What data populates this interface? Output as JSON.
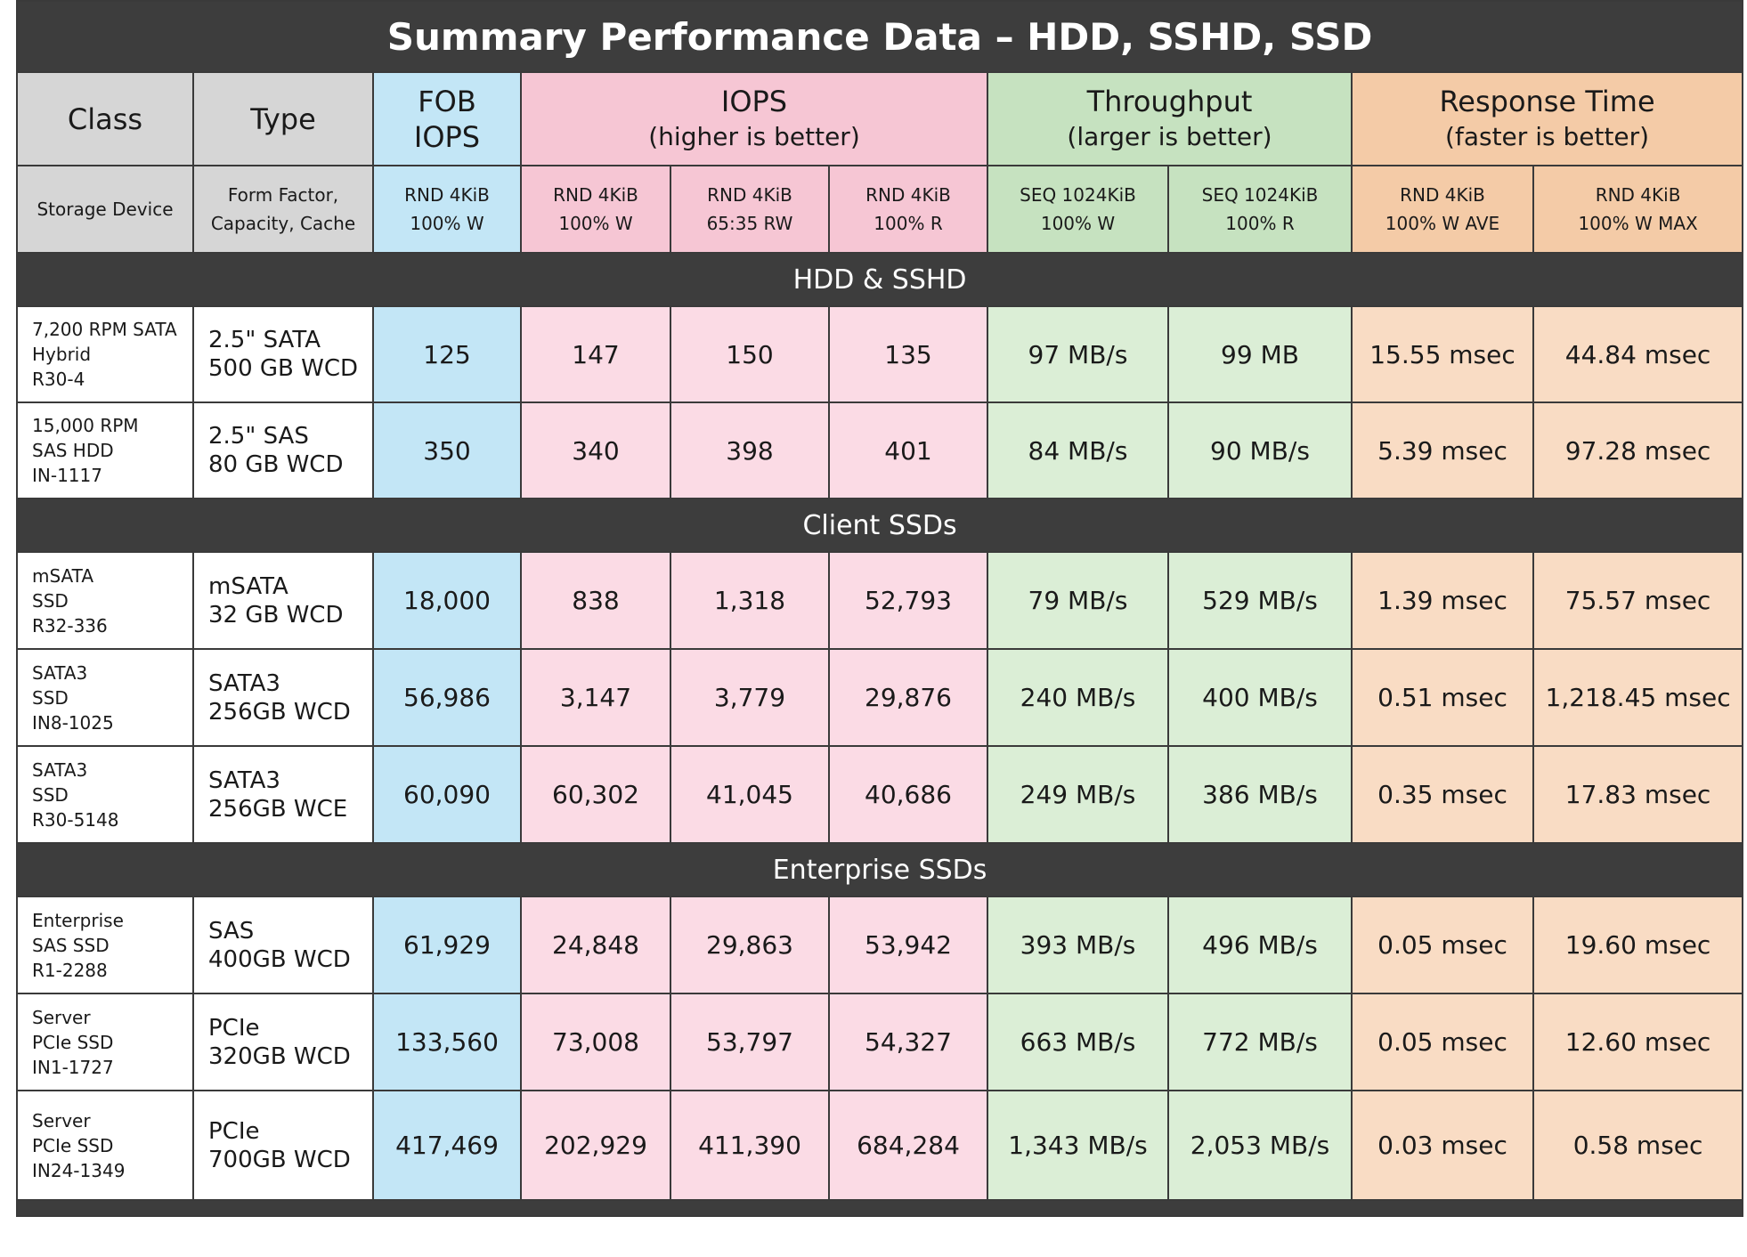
{
  "title": "Summary Performance Data – HDD, SSHD, SSD",
  "header_top": {
    "class": "Class",
    "type": "Type",
    "fob": [
      "FOB",
      "IOPS"
    ],
    "iops": [
      "IOPS",
      "(higher is better)"
    ],
    "throughput": [
      "Throughput",
      "(larger is better)"
    ],
    "response": [
      "Response Time",
      "(faster is better)"
    ]
  },
  "header_sub": {
    "class": "Storage Device",
    "type": [
      "Form Factor,",
      "Capacity, Cache"
    ],
    "cols": [
      [
        "RND 4KiB",
        "100% W"
      ],
      [
        "RND 4KiB",
        "100% W"
      ],
      [
        "RND 4KiB",
        "65:35 RW"
      ],
      [
        "RND 4KiB",
        "100% R"
      ],
      [
        "SEQ 1024KiB",
        "100% W"
      ],
      [
        "SEQ 1024KiB",
        "100% R"
      ],
      [
        "RND 4KiB",
        "100% W AVE"
      ],
      [
        "RND 4KiB",
        "100% W MAX"
      ]
    ]
  },
  "sections": [
    {
      "name": "HDD & SSHD",
      "rows": [
        {
          "class": [
            "7,200 RPM SATA",
            "Hybrid",
            "R30-4"
          ],
          "type": [
            "2.5\" SATA",
            "500 GB WCD"
          ],
          "values": [
            "125",
            "147",
            "150",
            "135",
            "97 MB/s",
            "99 MB",
            "15.55 msec",
            "44.84 msec"
          ]
        },
        {
          "class": [
            "15,000 RPM",
            "SAS HDD",
            "IN-1117"
          ],
          "type": [
            "2.5\" SAS",
            "80 GB WCD"
          ],
          "values": [
            "350",
            "340",
            "398",
            "401",
            "84 MB/s",
            "90 MB/s",
            "5.39 msec",
            "97.28 msec"
          ]
        }
      ]
    },
    {
      "name": "Client SSDs",
      "rows": [
        {
          "class": [
            "mSATA",
            "SSD",
            "R32-336"
          ],
          "type": [
            "mSATA",
            "32 GB WCD"
          ],
          "values": [
            "18,000",
            "838",
            "1,318",
            "52,793",
            "79 MB/s",
            "529 MB/s",
            "1.39 msec",
            "75.57 msec"
          ]
        },
        {
          "class": [
            "SATA3",
            "SSD",
            "IN8-1025"
          ],
          "type": [
            "SATA3",
            "256GB WCD"
          ],
          "values": [
            "56,986",
            "3,147",
            "3,779",
            "29,876",
            "240 MB/s",
            "400 MB/s",
            "0.51 msec",
            "1,218.45 msec"
          ]
        },
        {
          "class": [
            "SATA3",
            "SSD",
            "R30-5148"
          ],
          "type": [
            "SATA3",
            "256GB WCE"
          ],
          "values": [
            "60,090",
            "60,302",
            "41,045",
            "40,686",
            "249 MB/s",
            "386 MB/s",
            "0.35 msec",
            "17.83 msec"
          ]
        }
      ]
    },
    {
      "name": "Enterprise SSDs",
      "rows": [
        {
          "class": [
            "Enterprise",
            "SAS SSD",
            "R1-2288"
          ],
          "type": [
            "SAS",
            "400GB WCD"
          ],
          "values": [
            "61,929",
            "24,848",
            "29,863",
            "53,942",
            "393 MB/s",
            "496 MB/s",
            "0.05 msec",
            "19.60 msec"
          ]
        },
        {
          "class": [
            "Server",
            "PCIe SSD",
            "IN1-1727"
          ],
          "type": [
            "PCIe",
            "320GB WCD"
          ],
          "values": [
            "133,560",
            "73,008",
            "53,797",
            "54,327",
            "663 MB/s",
            "772 MB/s",
            "0.05 msec",
            "12.60 msec"
          ]
        },
        {
          "class": [
            "Server",
            "PCIe SSD",
            "IN24-1349"
          ],
          "type": [
            "PCIe",
            "700GB WCD"
          ],
          "values": [
            "417,469",
            "202,929",
            "411,390",
            "684,284",
            "1,343 MB/s",
            "2,053 MB/s",
            "0.03 msec",
            "0.58 msec"
          ]
        }
      ]
    }
  ],
  "colors": {
    "dark_bar": "#3d3d3d",
    "gray": "#d6d6d6",
    "blue": "#c3e6f6",
    "pink": "#f6c6d4",
    "pink_light": "#fbdbe5",
    "green": "#c6e2c0",
    "green_light": "#dbeed6",
    "orange": "#f4cba7",
    "orange_light": "#f9dcc4"
  }
}
